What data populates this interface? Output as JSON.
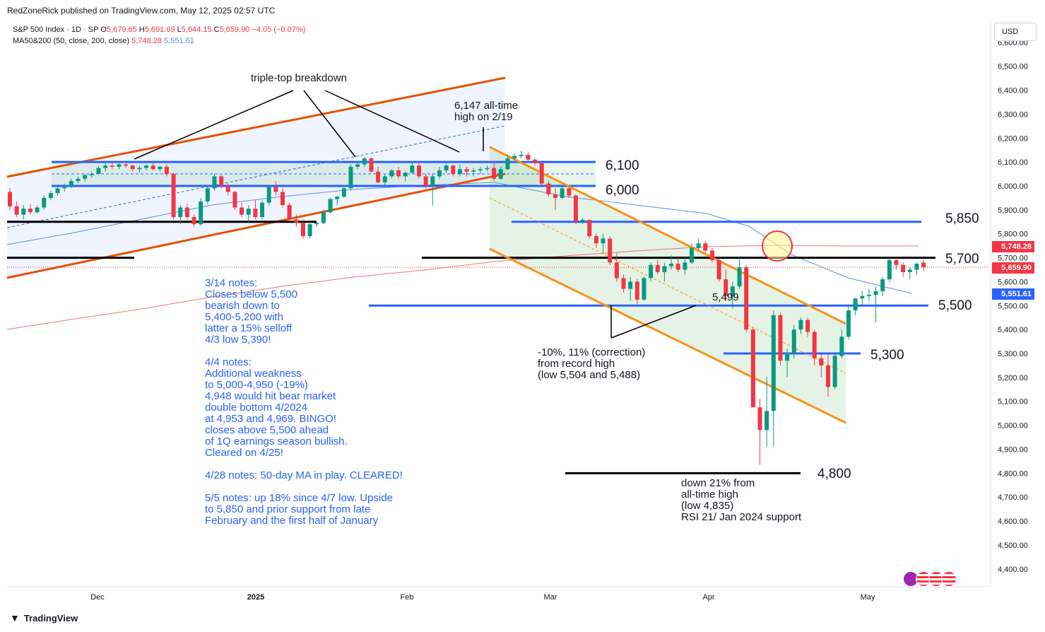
{
  "header": {
    "publisher": "RedZoneRick published on TradingView.com, May 12, 2025 02:57 UTC",
    "symbol": "S&P 500 Index · 1D · SP",
    "ohlc": {
      "o_label": "O",
      "o": "5,679.65",
      "h_label": "H",
      "h": "5,691.69",
      "l_label": "L",
      "l": "5,644.15",
      "c_label": "C",
      "c": "5,659.90",
      "chg": "−4.05 (−0.07%)"
    },
    "ma_label": "MA50&200 (50, close, 200, close)",
    "ma50": "5,748.28",
    "ma200": "5,551.61"
  },
  "currency_button": "USD",
  "price_tags": {
    "ma50": "5,748.28",
    "last": "5,659.90",
    "ma200": "5,551.61"
  },
  "footer": {
    "brand": "TradingView"
  },
  "annotations": {
    "triple_top": "triple-top breakdown",
    "ath": [
      "6,147 all-time",
      "high on 2/19"
    ],
    "level_6100": "6,100",
    "level_6000": "6,000",
    "level_5850": "5,850",
    "level_5700": "5,700",
    "level_5500": "5,500",
    "level_5300": "5,300",
    "level_4800": "4,800",
    "low_5499": "5,499",
    "correction": [
      "-10%, 11% (correction)",
      "from record high",
      "(low 5,504 and 5,488)"
    ],
    "down21": [
      "down 21% from",
      "all-time high",
      "(low 4,835)",
      "RSI 21/ Jan 2024 support"
    ]
  },
  "notes": [
    "3/14 notes:",
    "Closes below 5,500",
    "bearish down to",
    "5,400-5,200 with",
    "latter a 15% selloff",
    "4/3 low 5,390!",
    "",
    "4/4 notes:",
    "Additional weakness",
    "to 5,000-4,950 (-19%)",
    "4,948 would hit bear market",
    "double bottom 4/2024",
    "at 4,953 and 4,969. BINGO!",
    "closes above 5,500 ahead",
    "of 1Q earnings season bullish.",
    "Cleared on 4/25!",
    "",
    "4/28 notes: 50-day MA in play. CLEARED!",
    "",
    "5/5 notes: up 18% since 4/7 low. Upside",
    "to 5,850 and prior support from late",
    "February and the first half of January"
  ],
  "colors": {
    "up": "#089981",
    "down": "#f23645",
    "ma50": "#f23645",
    "ma200": "#5b8def",
    "blue_line": "#2962ff",
    "orange": "#f7931a",
    "channel_orange": "#e65100",
    "black": "#000000"
  },
  "chart_data": {
    "type": "candlestick",
    "title": "S&P 500 Index · 1D · SP",
    "ylim": [
      4300,
      6700
    ],
    "y_ticks": [
      "4,400.00",
      "4,500.00",
      "4,600.00",
      "4,700.00",
      "4,800.00",
      "4,900.00",
      "5,000.00",
      "5,100.00",
      "5,200.00",
      "5,300.00",
      "5,400.00",
      "5,500.00",
      "5,600.00",
      "5,700.00",
      "5,800.00",
      "5,900.00",
      "6,000.00",
      "6,100.00",
      "6,200.00",
      "6,300.00",
      "6,400.00",
      "6,500.00",
      "6,600.00"
    ],
    "x_ticks": [
      "Dec",
      "2025",
      "Feb",
      "Mar",
      "Apr",
      "May"
    ],
    "horizontal_levels": [
      6100,
      6000,
      5850,
      5700,
      5500,
      5300,
      4800
    ],
    "ma50_last": 5748.28,
    "ma200_last": 5551.61,
    "last_close": 5659.9,
    "candles": [
      [
        5975,
        5990,
        5900,
        5915
      ],
      [
        5915,
        5935,
        5870,
        5880
      ],
      [
        5880,
        5920,
        5860,
        5905
      ],
      [
        5905,
        5925,
        5880,
        5890
      ],
      [
        5890,
        5920,
        5885,
        5910
      ],
      [
        5910,
        5960,
        5900,
        5950
      ],
      [
        5950,
        5980,
        5940,
        5970
      ],
      [
        5970,
        6000,
        5960,
        5990
      ],
      [
        5990,
        6010,
        5975,
        5995
      ],
      [
        5995,
        6030,
        5990,
        6020
      ],
      [
        6020,
        6040,
        6010,
        6030
      ],
      [
        6030,
        6050,
        6020,
        6045
      ],
      [
        6045,
        6060,
        6035,
        6050
      ],
      [
        6050,
        6085,
        6045,
        6075
      ],
      [
        6075,
        6095,
        6060,
        6085
      ],
      [
        6085,
        6095,
        6070,
        6080
      ],
      [
        6080,
        6095,
        6070,
        6090
      ],
      [
        6090,
        6100,
        6075,
        6085
      ],
      [
        6085,
        6090,
        6060,
        6070
      ],
      [
        6070,
        6085,
        6055,
        6075
      ],
      [
        6075,
        6090,
        6065,
        6085
      ],
      [
        6085,
        6095,
        6065,
        6070
      ],
      [
        6070,
        6085,
        6060,
        6080
      ],
      [
        6080,
        6090,
        6040,
        6050
      ],
      [
        6050,
        6055,
        5860,
        5870
      ],
      [
        5870,
        5920,
        5840,
        5910
      ],
      [
        5910,
        5925,
        5860,
        5870
      ],
      [
        5870,
        5880,
        5830,
        5840
      ],
      [
        5840,
        5950,
        5835,
        5935
      ],
      [
        5935,
        6000,
        5925,
        5990
      ],
      [
        5990,
        6050,
        5980,
        6040
      ],
      [
        6040,
        6045,
        5990,
        6000
      ],
      [
        6000,
        6010,
        5960,
        5975
      ],
      [
        5975,
        5980,
        5900,
        5910
      ],
      [
        5910,
        5930,
        5870,
        5880
      ],
      [
        5880,
        5920,
        5850,
        5905
      ],
      [
        5905,
        5940,
        5860,
        5870
      ],
      [
        5870,
        5940,
        5860,
        5930
      ],
      [
        5930,
        6000,
        5920,
        5995
      ],
      [
        5995,
        6020,
        5960,
        5975
      ],
      [
        5975,
        5990,
        5910,
        5920
      ],
      [
        5920,
        5930,
        5850,
        5860
      ],
      [
        5860,
        5880,
        5830,
        5845
      ],
      [
        5845,
        5860,
        5780,
        5790
      ],
      [
        5790,
        5850,
        5780,
        5840
      ],
      [
        5840,
        5850,
        5830,
        5845
      ],
      [
        5845,
        5900,
        5840,
        5890
      ],
      [
        5890,
        5950,
        5885,
        5945
      ],
      [
        5945,
        5960,
        5920,
        5955
      ],
      [
        5955,
        6000,
        5950,
        5990
      ],
      [
        5990,
        6090,
        5980,
        6080
      ],
      [
        6080,
        6100,
        6070,
        6090
      ],
      [
        6090,
        6120,
        6080,
        6115
      ],
      [
        6115,
        6120,
        6055,
        6060
      ],
      [
        6060,
        6080,
        6010,
        6015
      ],
      [
        6015,
        6050,
        6005,
        6040
      ],
      [
        6040,
        6070,
        6030,
        6065
      ],
      [
        6065,
        6080,
        6030,
        6040
      ],
      [
        6040,
        6060,
        6020,
        6055
      ],
      [
        6055,
        6100,
        6050,
        6085
      ],
      [
        6085,
        6100,
        6030,
        6040
      ],
      [
        6040,
        6050,
        5990,
        6000
      ],
      [
        6000,
        6050,
        5920,
        6040
      ],
      [
        6040,
        6080,
        6030,
        6065
      ],
      [
        6065,
        6100,
        6055,
        6085
      ],
      [
        6085,
        6090,
        6040,
        6050
      ],
      [
        6050,
        6090,
        6040,
        6070
      ],
      [
        6070,
        6080,
        6040,
        6060
      ],
      [
        6060,
        6075,
        6040,
        6065
      ],
      [
        6065,
        6080,
        6050,
        6070
      ],
      [
        6070,
        6085,
        6060,
        6075
      ],
      [
        6075,
        6100,
        6020,
        6030
      ],
      [
        6030,
        6080,
        6025,
        6070
      ],
      [
        6070,
        6130,
        6065,
        6115
      ],
      [
        6115,
        6135,
        6110,
        6125
      ],
      [
        6125,
        6147,
        6115,
        6130
      ],
      [
        6130,
        6140,
        6100,
        6110
      ],
      [
        6110,
        6115,
        6085,
        6095
      ],
      [
        6095,
        6100,
        6000,
        6010
      ],
      [
        6010,
        6020,
        5955,
        5965
      ],
      [
        5965,
        5990,
        5900,
        5950
      ],
      [
        5950,
        6000,
        5945,
        5990
      ],
      [
        5990,
        6000,
        5950,
        5960
      ],
      [
        5960,
        5965,
        5840,
        5850
      ],
      [
        5850,
        5865,
        5840,
        5858
      ],
      [
        5858,
        5860,
        5780,
        5790
      ],
      [
        5790,
        5800,
        5740,
        5760
      ],
      [
        5760,
        5800,
        5720,
        5780
      ],
      [
        5780,
        5790,
        5670,
        5680
      ],
      [
        5680,
        5720,
        5600,
        5615
      ],
      [
        5615,
        5630,
        5555,
        5570
      ],
      [
        5570,
        5620,
        5520,
        5600
      ],
      [
        5600,
        5610,
        5505,
        5525
      ],
      [
        5525,
        5620,
        5520,
        5615
      ],
      [
        5615,
        5680,
        5600,
        5670
      ],
      [
        5670,
        5690,
        5630,
        5640
      ],
      [
        5640,
        5680,
        5600,
        5665
      ],
      [
        5665,
        5710,
        5650,
        5675
      ],
      [
        5675,
        5700,
        5640,
        5650
      ],
      [
        5650,
        5700,
        5630,
        5680
      ],
      [
        5680,
        5760,
        5675,
        5740
      ],
      [
        5740,
        5780,
        5730,
        5760
      ],
      [
        5760,
        5770,
        5720,
        5730
      ],
      [
        5730,
        5740,
        5680,
        5690
      ],
      [
        5690,
        5700,
        5600,
        5610
      ],
      [
        5610,
        5650,
        5520,
        5540
      ],
      [
        5540,
        5600,
        5488,
        5580
      ],
      [
        5580,
        5700,
        5570,
        5660
      ],
      [
        5660,
        5670,
        5390,
        5400
      ],
      [
        5400,
        5410,
        5080,
        5075
      ],
      [
        5075,
        5110,
        4835,
        4980
      ],
      [
        4980,
        5200,
        4910,
        5060
      ],
      [
        5060,
        5480,
        4910,
        5460
      ],
      [
        5460,
        5470,
        5250,
        5270
      ],
      [
        5270,
        5320,
        5200,
        5300
      ],
      [
        5300,
        5420,
        5280,
        5400
      ],
      [
        5400,
        5450,
        5380,
        5440
      ],
      [
        5440,
        5450,
        5370,
        5390
      ],
      [
        5390,
        5400,
        5250,
        5280
      ],
      [
        5280,
        5300,
        5200,
        5250
      ],
      [
        5250,
        5300,
        5120,
        5160
      ],
      [
        5160,
        5300,
        5150,
        5290
      ],
      [
        5290,
        5400,
        5280,
        5370
      ],
      [
        5370,
        5500,
        5360,
        5480
      ],
      [
        5480,
        5530,
        5460,
        5530
      ],
      [
        5530,
        5560,
        5500,
        5540
      ],
      [
        5540,
        5570,
        5520,
        5545
      ],
      [
        5545,
        5580,
        5430,
        5560
      ],
      [
        5560,
        5620,
        5540,
        5610
      ],
      [
        5610,
        5700,
        5600,
        5690
      ],
      [
        5690,
        5700,
        5650,
        5670
      ],
      [
        5670,
        5680,
        5620,
        5640
      ],
      [
        5640,
        5660,
        5610,
        5650
      ],
      [
        5650,
        5680,
        5630,
        5675
      ],
      [
        5679.65,
        5691.69,
        5644.15,
        5659.9
      ]
    ]
  }
}
